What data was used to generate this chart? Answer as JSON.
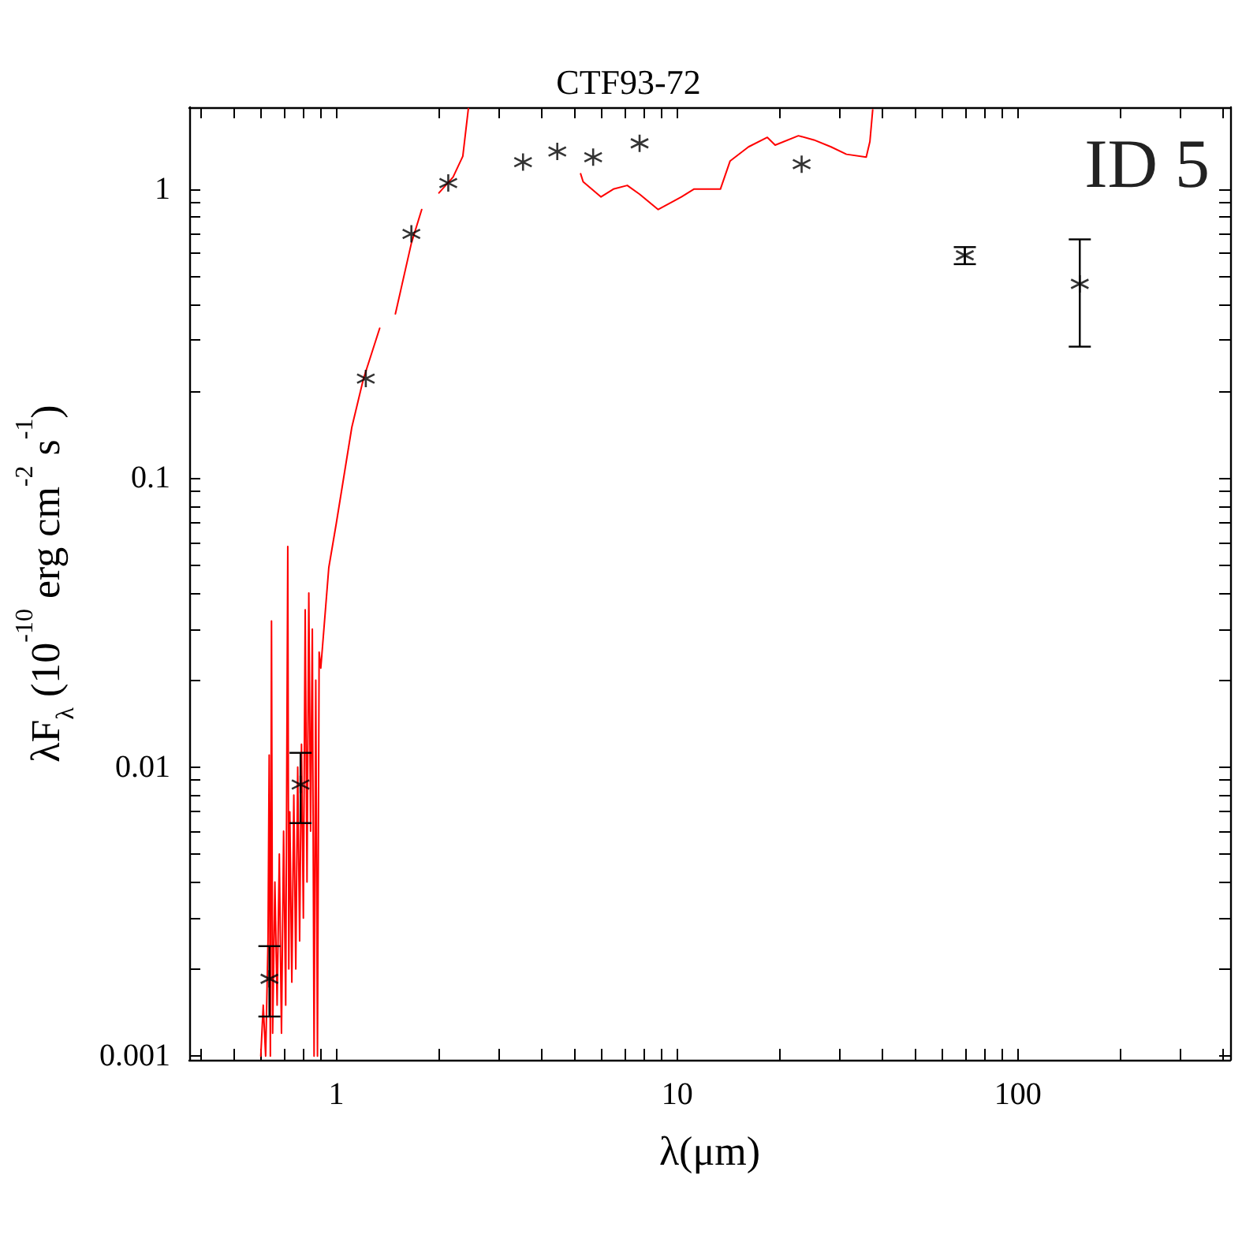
{
  "chart_data": {
    "type": "line",
    "title": "CTF93-72",
    "xlabel": "λ(μm)",
    "ylabel": "λF$_{λ}$ (10$^{-10}$ erg cm$^{-2}$ s$^{-1}$)",
    "annotations": [
      "ID 5"
    ],
    "log": "xy",
    "grid": false,
    "xlim": [
      0.37,
      420
    ],
    "ylim": [
      0.00097,
      1.92
    ],
    "xticks": [
      {
        "value": 0.4,
        "label": null
      },
      {
        "value": 0.5,
        "label": null
      },
      {
        "value": 0.6,
        "label": null
      },
      {
        "value": 0.7,
        "label": null
      },
      {
        "value": 0.8,
        "label": null
      },
      {
        "value": 0.9,
        "label": null
      },
      1,
      {
        "value": 2,
        "label": null
      },
      {
        "value": 3,
        "label": null
      },
      {
        "value": 4,
        "label": null
      },
      {
        "value": 5,
        "label": null
      },
      {
        "value": 6,
        "label": null
      },
      {
        "value": 7,
        "label": null
      },
      {
        "value": 8,
        "label": null
      },
      {
        "value": 9,
        "label": null
      },
      10,
      {
        "value": 20,
        "label": null
      },
      {
        "value": 30,
        "label": null
      },
      {
        "value": 40,
        "label": null
      },
      {
        "value": 50,
        "label": null
      },
      {
        "value": 60,
        "label": null
      },
      {
        "value": 70,
        "label": null
      },
      {
        "value": 80,
        "label": null
      },
      {
        "value": 90,
        "label": null
      },
      100,
      {
        "value": 200,
        "label": null
      },
      {
        "value": 300,
        "label": null
      },
      {
        "value": 400,
        "label": null
      }
    ],
    "yticks": [
      0.001,
      {
        "value": 0.002,
        "label": null
      },
      {
        "value": 0.003,
        "label": null
      },
      {
        "value": 0.004,
        "label": null
      },
      {
        "value": 0.005,
        "label": null
      },
      {
        "value": 0.006,
        "label": null
      },
      {
        "value": 0.007,
        "label": null
      },
      {
        "value": 0.008,
        "label": null
      },
      {
        "value": 0.009,
        "label": null
      },
      0.01,
      {
        "value": 0.02,
        "label": null
      },
      {
        "value": 0.03,
        "label": null
      },
      {
        "value": 0.04,
        "label": null
      },
      {
        "value": 0.05,
        "label": null
      },
      {
        "value": 0.06,
        "label": null
      },
      {
        "value": 0.07,
        "label": null
      },
      {
        "value": 0.08,
        "label": null
      },
      {
        "value": 0.09,
        "label": null
      },
      0.1,
      {
        "value": 0.2,
        "label": null
      },
      {
        "value": 0.3,
        "label": null
      },
      {
        "value": 0.4,
        "label": null
      },
      {
        "value": 0.5,
        "label": null
      },
      {
        "value": 0.6,
        "label": null
      },
      {
        "value": 0.7,
        "label": null
      },
      {
        "value": 0.8,
        "label": null
      },
      {
        "value": 0.9,
        "label": null
      },
      1
    ],
    "series": [
      {
        "color": "#ff0000",
        "marker": "none",
        "line_style": "solid",
        "x": [
          0.6,
          0.61,
          0.62,
          0.63,
          0.635,
          0.64,
          0.645,
          0.65,
          0.66,
          0.67,
          0.68,
          0.69,
          0.7,
          0.71,
          0.72,
          0.725,
          0.73,
          0.74,
          0.75,
          0.76,
          0.77,
          0.78,
          0.79,
          0.8,
          0.81,
          0.82,
          0.83,
          0.84,
          0.85,
          0.86,
          0.87,
          0.88,
          0.89,
          0.9,
          0.95,
          1.0,
          1.11,
          1.2,
          1.34,
          1.42,
          1.49,
          1.66,
          1.78,
          1.9,
          2.0,
          2.2,
          2.35,
          2.44,
          4.5,
          5.21,
          5.3,
          5.98,
          6.5,
          7.14,
          7.76,
          8.8,
          10.3,
          11.2,
          13.4,
          14.3,
          16.2,
          18.4,
          19.4,
          22.7,
          25.2,
          28.3,
          31.4,
          35.9,
          36.8,
          37.5
        ],
        "values": [
          0.001,
          0.0015,
          0.001,
          0.0025,
          0.011,
          0.001,
          0.032,
          0.0012,
          0.004,
          0.0015,
          0.005,
          0.0012,
          0.006,
          0.0015,
          0.058,
          0.002,
          0.007,
          0.0018,
          0.008,
          0.002,
          0.01,
          0.0025,
          0.012,
          0.003,
          0.035,
          0.004,
          0.04,
          0.006,
          0.03,
          0.001,
          0.02,
          0.001,
          0.025,
          0.022,
          0.049,
          0.07,
          0.15,
          0.22,
          0.33,
          null,
          0.37,
          0.65,
          0.85,
          null,
          0.97,
          1.1,
          1.3,
          1.9,
          null,
          1.13,
          1.06,
          0.94,
          1.0,
          1.03,
          0.96,
          0.85,
          0.94,
          1.0,
          1.0,
          1.25,
          1.4,
          1.51,
          1.42,
          1.53,
          1.48,
          1.4,
          1.32,
          1.29,
          1.46,
          1.88
        ]
      },
      {
        "type": "scatter",
        "color": "#000000",
        "marker": "cross",
        "x": [
          0.636,
          0.785,
          1.22,
          1.66,
          2.13,
          3.53,
          4.45,
          5.67,
          7.76,
          23.2,
          69.9,
          152
        ],
        "values": [
          0.00185,
          0.0087,
          0.221,
          0.7,
          1.05,
          1.24,
          1.35,
          1.29,
          1.44,
          1.22,
          0.59,
          0.47
        ],
        "errors": [
          [
            0.00137,
            0.0024
          ],
          [
            0.0064,
            0.0112
          ],
          null,
          null,
          null,
          null,
          null,
          null,
          null,
          null,
          [
            0.55,
            0.63
          ],
          [
            0.285,
            0.67
          ]
        ]
      }
    ]
  }
}
